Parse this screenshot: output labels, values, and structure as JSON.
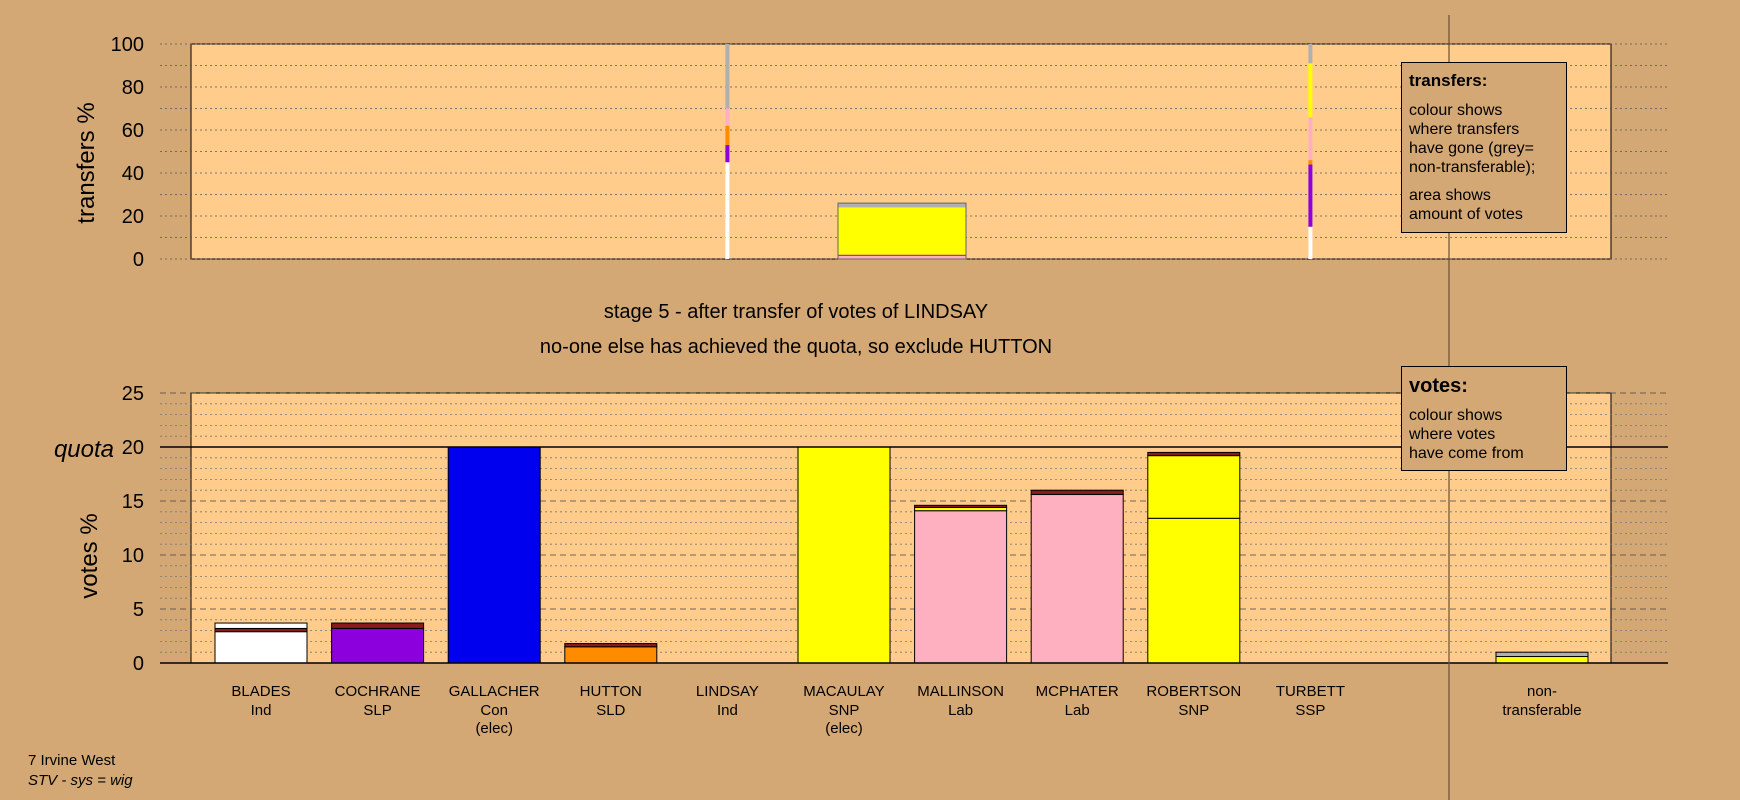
{
  "colors": {
    "background": "#d4a874",
    "plot_area": "#ffcc8c",
    "Ind": "#ffffff",
    "SLP": "#8b00dd",
    "Con": "#0000ee",
    "SLD": "#ff8c00",
    "SNP": "#ffff00",
    "Lab": "#ffb0c0",
    "SSP": "#8b1a1a",
    "nontransferable": "#b0b0b0"
  },
  "chart_data": [
    {
      "type": "bar",
      "subtype": "stacked-bar",
      "id": "transfers",
      "ylabel": "transfers %",
      "ylim": [
        0,
        100
      ],
      "yticks": [
        0,
        20,
        40,
        60,
        80,
        100
      ],
      "grid": "dotted",
      "categories": [
        "BLADES",
        "COCHRANE",
        "GALLACHER",
        "HUTTON",
        "LINDSAY",
        "MACAULAY",
        "MALLINSON",
        "MCPHATER",
        "ROBERTSON",
        "TURBETT"
      ],
      "lines": [
        {
          "at": "LINDSAY",
          "segments": [
            {
              "party": "Ind",
              "from": 0,
              "to": 45
            },
            {
              "party": "SLP",
              "from": 45,
              "to": 53
            },
            {
              "party": "SLD",
              "from": 53,
              "to": 62
            },
            {
              "party": "Lab",
              "from": 62,
              "to": 70
            },
            {
              "party": "nontransferable",
              "from": 70,
              "to": 100
            }
          ]
        },
        {
          "at": "TURBETT",
          "segments": [
            {
              "party": "Ind",
              "from": 0,
              "to": 15
            },
            {
              "party": "SLP",
              "from": 15,
              "to": 44
            },
            {
              "party": "SLD",
              "from": 44,
              "to": 46
            },
            {
              "party": "Lab",
              "from": 46,
              "to": 66
            },
            {
              "party": "SNP",
              "from": 66,
              "to": 91
            },
            {
              "party": "nontransferable",
              "from": 91,
              "to": 100
            }
          ]
        }
      ],
      "block": {
        "at": "MACAULAY",
        "segments": [
          {
            "party": "Lab",
            "from": 0,
            "to": 1.5
          },
          {
            "party": "SLP",
            "from": 1.5,
            "to": 2
          },
          {
            "party": "SNP",
            "from": 2,
            "to": 24
          },
          {
            "party": "nontransferable",
            "from": 24,
            "to": 26
          }
        ]
      }
    },
    {
      "type": "bar",
      "subtype": "stacked-bar",
      "id": "votes",
      "ylabel": "votes %",
      "ylim": [
        0,
        25
      ],
      "yticks": [
        0,
        5,
        10,
        15,
        20,
        25
      ],
      "quota": 20,
      "quota_label": "quota",
      "grid": "dashed",
      "categories": [
        {
          "name": "BLADES",
          "party": "Ind",
          "note": ""
        },
        {
          "name": "COCHRANE",
          "party": "SLP",
          "note": ""
        },
        {
          "name": "GALLACHER",
          "party": "Con",
          "note": "(elec)"
        },
        {
          "name": "HUTTON",
          "party": "SLD",
          "note": ""
        },
        {
          "name": "LINDSAY",
          "party": "Ind",
          "note": ""
        },
        {
          "name": "MACAULAY",
          "party": "SNP",
          "note": "(elec)"
        },
        {
          "name": "MALLINSON",
          "party": "Lab",
          "note": ""
        },
        {
          "name": "MCPHATER",
          "party": "Lab",
          "note": ""
        },
        {
          "name": "ROBERTSON",
          "party": "SNP",
          "note": ""
        },
        {
          "name": "TURBETT",
          "party": "SSP",
          "note": ""
        }
      ],
      "stacks": [
        [
          {
            "party": "Ind",
            "value": 2.9
          },
          {
            "party": "SSP",
            "value": 0.3
          },
          {
            "party": "Ind",
            "value": 0.5
          }
        ],
        [
          {
            "party": "SLP",
            "value": 3.2
          },
          {
            "party": "SSP",
            "value": 0.5
          }
        ],
        [
          {
            "party": "Con",
            "value": 20.0
          }
        ],
        [
          {
            "party": "SLD",
            "value": 1.5
          },
          {
            "party": "SSP",
            "value": 0.3
          }
        ],
        [],
        [
          {
            "party": "SNP",
            "value": 20.0
          }
        ],
        [
          {
            "party": "Lab",
            "value": 14.1
          },
          {
            "party": "SNP",
            "value": 0.3
          },
          {
            "party": "SSP",
            "value": 0.2
          }
        ],
        [
          {
            "party": "Lab",
            "value": 15.6
          },
          {
            "party": "SSP",
            "value": 0.4
          }
        ],
        [
          {
            "party": "SNP",
            "value": 13.4
          },
          {
            "party": "SNP",
            "value": 5.8
          },
          {
            "party": "SSP",
            "value": 0.3
          }
        ],
        []
      ],
      "nontransferable": {
        "label_line1": "non-",
        "label_line2": "transferable",
        "stack": [
          {
            "party": "SNP",
            "value": 0.6
          },
          {
            "party": "nontransferable",
            "value": 0.4
          }
        ]
      }
    }
  ],
  "stage_title": "stage 5 - after transfer of votes of LINDSAY",
  "stage_subtitle": "no-one else has achieved the quota, so exclude HUTTON",
  "legend_transfers": {
    "title": "transfers:",
    "text1": [
      "colour shows",
      "where transfers",
      "have gone (grey=",
      "non-transferable);"
    ],
    "text2": [
      "area shows",
      "amount of votes"
    ]
  },
  "legend_votes": {
    "title": "votes:",
    "text": [
      "colour shows",
      "where votes",
      "have come from"
    ]
  },
  "footer": {
    "ward": "7 Irvine West",
    "system": "STV - sys = wig"
  }
}
